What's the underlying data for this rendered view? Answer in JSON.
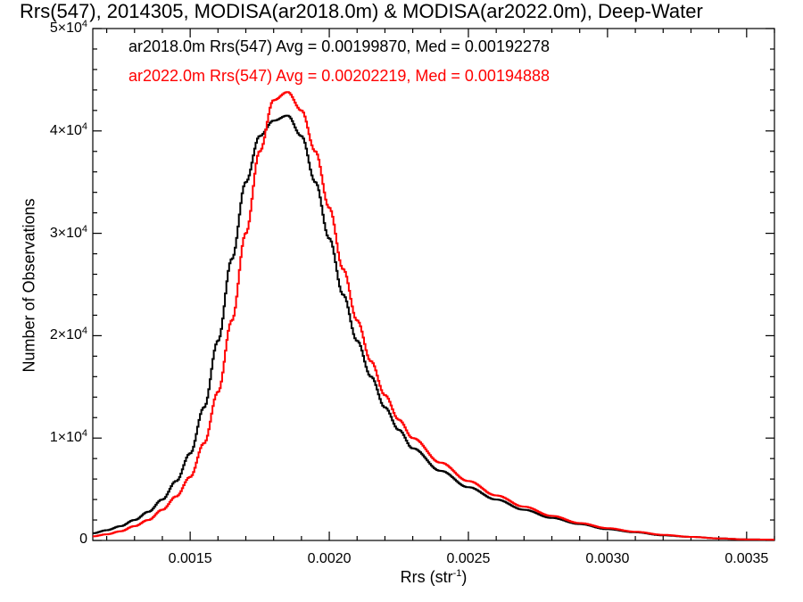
{
  "chart_data": {
    "type": "line",
    "title": "Rrs(547), 2014305, MODISA(ar2018.0m) & MODISA(ar2022.0m), Deep-Water",
    "xlabel_main": "Rrs (str",
    "xlabel_sup": "-1",
    "xlabel_close": ")",
    "ylabel": "Number of Observations",
    "xlim": [
      0.00115,
      0.0036
    ],
    "ylim": [
      0,
      50000
    ],
    "x_ticks": [
      {
        "value": 0.0015,
        "label": "0.0015"
      },
      {
        "value": 0.002,
        "label": "0.0020"
      },
      {
        "value": 0.0025,
        "label": "0.0025"
      },
      {
        "value": 0.003,
        "label": "0.0030"
      },
      {
        "value": 0.0035,
        "label": "0.0035"
      }
    ],
    "y_ticks": [
      {
        "value": 0,
        "base": "0",
        "exp": ""
      },
      {
        "value": 10000,
        "base": "1×10",
        "exp": "4"
      },
      {
        "value": 20000,
        "base": "2×10",
        "exp": "4"
      },
      {
        "value": 30000,
        "base": "3×10",
        "exp": "4"
      },
      {
        "value": 40000,
        "base": "4×10",
        "exp": "4"
      },
      {
        "value": 50000,
        "base": "5×10",
        "exp": "4"
      }
    ],
    "grid": false,
    "legend_position": "top-left",
    "series": [
      {
        "name": "ar2018.0m Rrs(547) Avg = 0.00199870, Med = 0.00192278",
        "color": "#000000",
        "points": [
          [
            0.00115,
            700
          ],
          [
            0.0012,
            1000
          ],
          [
            0.00125,
            1400
          ],
          [
            0.0013,
            2000
          ],
          [
            0.00135,
            2800
          ],
          [
            0.0014,
            4000
          ],
          [
            0.00145,
            5800
          ],
          [
            0.0015,
            8500
          ],
          [
            0.00155,
            13000
          ],
          [
            0.0016,
            19500
          ],
          [
            0.00165,
            27500
          ],
          [
            0.0017,
            35000
          ],
          [
            0.00175,
            39500
          ],
          [
            0.0018,
            41000
          ],
          [
            0.00185,
            41500
          ],
          [
            0.0019,
            39500
          ],
          [
            0.00195,
            35000
          ],
          [
            0.002,
            29500
          ],
          [
            0.00205,
            24000
          ],
          [
            0.0021,
            19500
          ],
          [
            0.00215,
            16000
          ],
          [
            0.0022,
            13000
          ],
          [
            0.00225,
            10800
          ],
          [
            0.0023,
            9000
          ],
          [
            0.0024,
            6800
          ],
          [
            0.0025,
            5200
          ],
          [
            0.0026,
            4000
          ],
          [
            0.0027,
            3000
          ],
          [
            0.0028,
            2200
          ],
          [
            0.0029,
            1600
          ],
          [
            0.003,
            1100
          ],
          [
            0.0031,
            800
          ],
          [
            0.0032,
            500
          ],
          [
            0.0033,
            350
          ],
          [
            0.0034,
            200
          ],
          [
            0.0035,
            100
          ],
          [
            0.0036,
            80
          ]
        ]
      },
      {
        "name": "ar2022.0m Rrs(547) Avg = 0.00202219, Med = 0.00194888",
        "color": "#ff0000",
        "points": [
          [
            0.00115,
            400
          ],
          [
            0.0012,
            600
          ],
          [
            0.00125,
            900
          ],
          [
            0.0013,
            1400
          ],
          [
            0.00135,
            2000
          ],
          [
            0.0014,
            3000
          ],
          [
            0.00145,
            4300
          ],
          [
            0.0015,
            6200
          ],
          [
            0.00155,
            9500
          ],
          [
            0.0016,
            14500
          ],
          [
            0.00165,
            21500
          ],
          [
            0.0017,
            30000
          ],
          [
            0.00175,
            38000
          ],
          [
            0.0018,
            43000
          ],
          [
            0.00185,
            43800
          ],
          [
            0.0019,
            42000
          ],
          [
            0.00195,
            38000
          ],
          [
            0.002,
            32500
          ],
          [
            0.00205,
            26500
          ],
          [
            0.0021,
            21500
          ],
          [
            0.00215,
            17500
          ],
          [
            0.0022,
            14200
          ],
          [
            0.00225,
            11800
          ],
          [
            0.0023,
            10000
          ],
          [
            0.0024,
            7600
          ],
          [
            0.0025,
            5800
          ],
          [
            0.0026,
            4400
          ],
          [
            0.0027,
            3300
          ],
          [
            0.0028,
            2400
          ],
          [
            0.0029,
            1700
          ],
          [
            0.003,
            1200
          ],
          [
            0.0031,
            850
          ],
          [
            0.0032,
            550
          ],
          [
            0.0033,
            350
          ],
          [
            0.0034,
            200
          ],
          [
            0.0035,
            100
          ],
          [
            0.0036,
            80
          ]
        ]
      }
    ]
  }
}
